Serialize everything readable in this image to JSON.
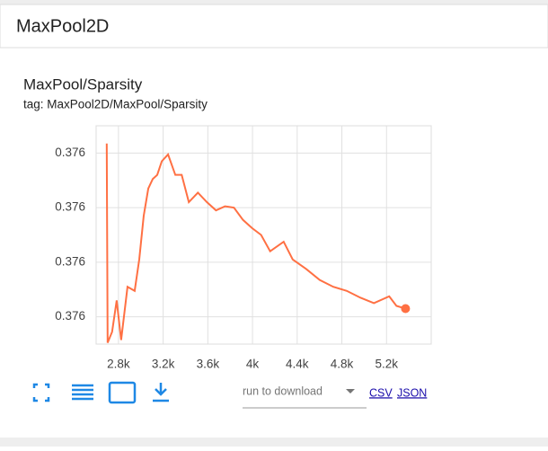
{
  "header": {
    "title": "MaxPool2D"
  },
  "card": {
    "title": "MaxPool/Sparsity",
    "tag": "tag: MaxPool2D/MaxPool/Sparsity"
  },
  "download": {
    "run_select": "run to download",
    "csv": "CSV",
    "json": "JSON"
  },
  "chart_data": {
    "type": "line",
    "x": [
      2695,
      2703,
      2743,
      2784,
      2824,
      2881,
      2945,
      2986,
      3026,
      3067,
      3107,
      3147,
      3188,
      3244,
      3309,
      3366,
      3430,
      3511,
      3592,
      3673,
      3754,
      3834,
      3915,
      3996,
      4077,
      4158,
      4279,
      4360,
      4481,
      4602,
      4723,
      4844,
      4966,
      5087,
      5224,
      5289,
      5370
    ],
    "series": [
      {
        "color": "#ff7043",
        "values": [
          0.376167,
          0.376021,
          0.376029,
          0.376052,
          0.376023,
          0.376062,
          0.376059,
          0.376082,
          0.376114,
          0.376134,
          0.376141,
          0.376144,
          0.376154,
          0.376159,
          0.376144,
          0.376144,
          0.376124,
          0.376131,
          0.376124,
          0.376118,
          0.376121,
          0.37612,
          0.376111,
          0.376105,
          0.3761,
          0.376088,
          0.376095,
          0.376082,
          0.376075,
          0.376067,
          0.376062,
          0.376059,
          0.376054,
          0.37605,
          0.376055,
          0.376048,
          0.376046
        ]
      }
    ],
    "xlim": [
      2600,
      5600
    ],
    "xticks": [
      {
        "value": 2800,
        "label": "2.8k"
      },
      {
        "value": 3200,
        "label": "3.2k"
      },
      {
        "value": 3600,
        "label": "3.6k"
      },
      {
        "value": 4000,
        "label": "4k"
      },
      {
        "value": 4400,
        "label": "4.4k"
      },
      {
        "value": 4800,
        "label": "4.8k"
      },
      {
        "value": 5200,
        "label": "5.2k"
      }
    ],
    "ylim": [
      0.37602,
      0.37618
    ],
    "yticks": [
      {
        "value": 0.37604,
        "label": "0.376"
      },
      {
        "value": 0.37608,
        "label": "0.376"
      },
      {
        "value": 0.37612,
        "label": "0.376"
      },
      {
        "value": 0.37616,
        "label": "0.376"
      }
    ],
    "grid": true
  }
}
